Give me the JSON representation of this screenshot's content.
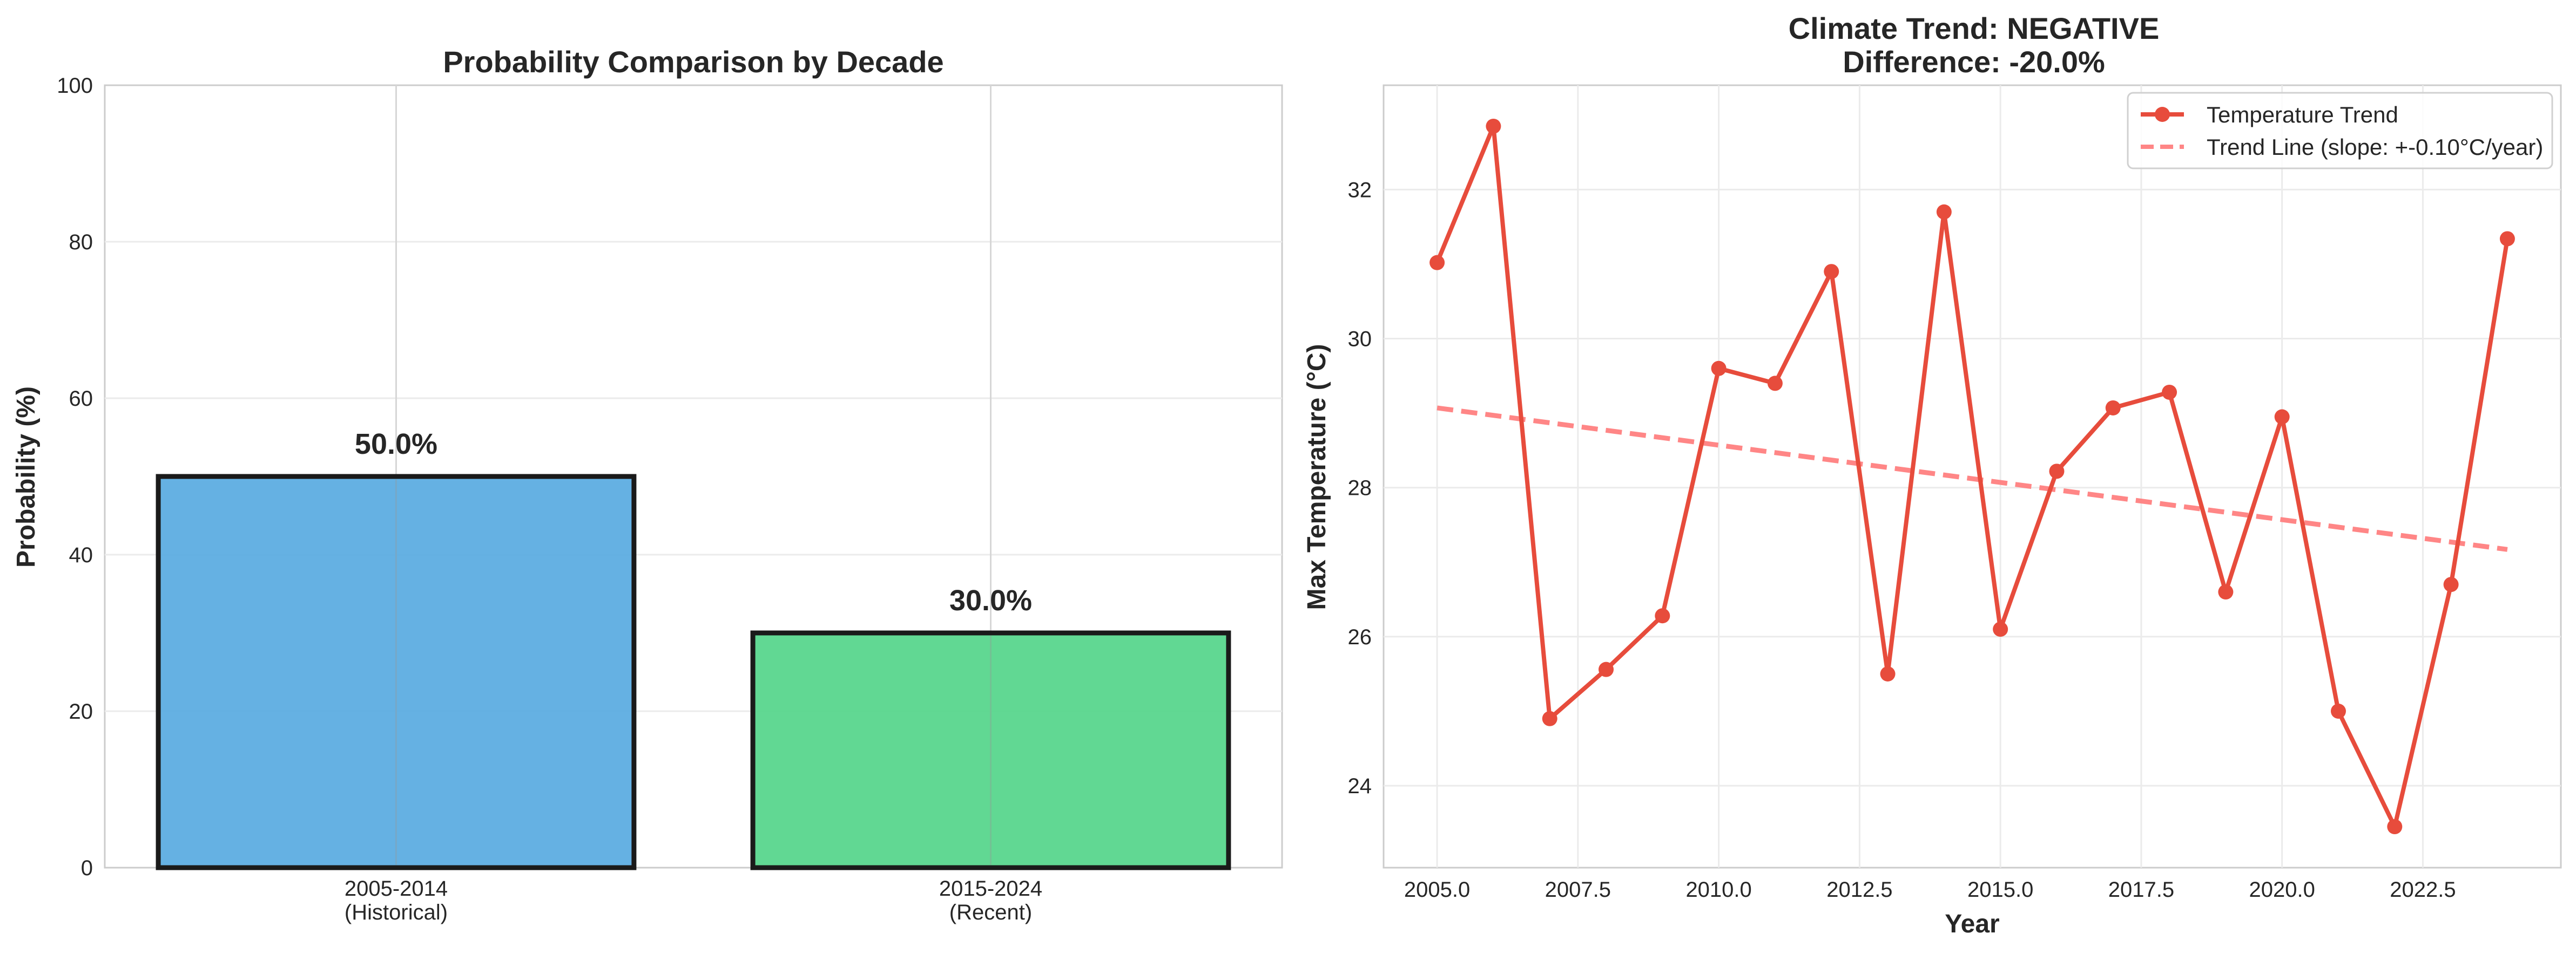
{
  "chart_data": [
    {
      "type": "bar",
      "title": "Probability Comparison by Decade",
      "xlabel": "",
      "ylabel": "Probability (%)",
      "ylim": [
        0,
        100
      ],
      "yticks": [
        "0",
        "20",
        "40",
        "60",
        "80",
        "100"
      ],
      "categories": [
        {
          "line1": "2005-2014",
          "line2": "(Historical)"
        },
        {
          "line1": "2015-2024",
          "line2": "(Recent)"
        }
      ],
      "values": [
        50.0,
        30.0
      ],
      "value_labels": [
        "50.0%",
        "30.0%"
      ],
      "colors": [
        "#5dade2",
        "#58d68d"
      ],
      "edge_color": "#1a1a1a",
      "grid": true
    },
    {
      "type": "line",
      "title_line1": "Climate Trend: NEGATIVE",
      "title_line2": "Difference: -20.0%",
      "xlabel": "Year",
      "ylabel": "Max Temperature (°C)",
      "xlim": [
        2004.05,
        2024.95
      ],
      "ylim": [
        22.9,
        33.4
      ],
      "xticks": [
        "2005.0",
        "2007.5",
        "2010.0",
        "2012.5",
        "2015.0",
        "2017.5",
        "2020.0",
        "2022.5"
      ],
      "yticks": [
        "24",
        "26",
        "28",
        "30",
        "32"
      ],
      "grid": true,
      "legend_position": "top-right",
      "series": [
        {
          "name": "Temperature Trend",
          "color": "#e74c3c",
          "x": [
            2005,
            2006,
            2007,
            2008,
            2009,
            2010,
            2011,
            2012,
            2013,
            2014,
            2015,
            2016,
            2017,
            2018,
            2019,
            2020,
            2021,
            2022,
            2023,
            2024
          ],
          "y": [
            31.02,
            32.85,
            24.9,
            25.56,
            26.28,
            29.6,
            29.4,
            30.9,
            25.5,
            31.7,
            26.1,
            28.22,
            29.07,
            29.28,
            26.6,
            28.95,
            25.0,
            23.45,
            26.7,
            31.34
          ]
        },
        {
          "name": "Trend Line (slope: +-0.10°C/year)",
          "color": "#ff7f7f",
          "style": "dashed",
          "x": [
            2005,
            2024
          ],
          "y": [
            29.07,
            27.17
          ]
        }
      ]
    }
  ]
}
